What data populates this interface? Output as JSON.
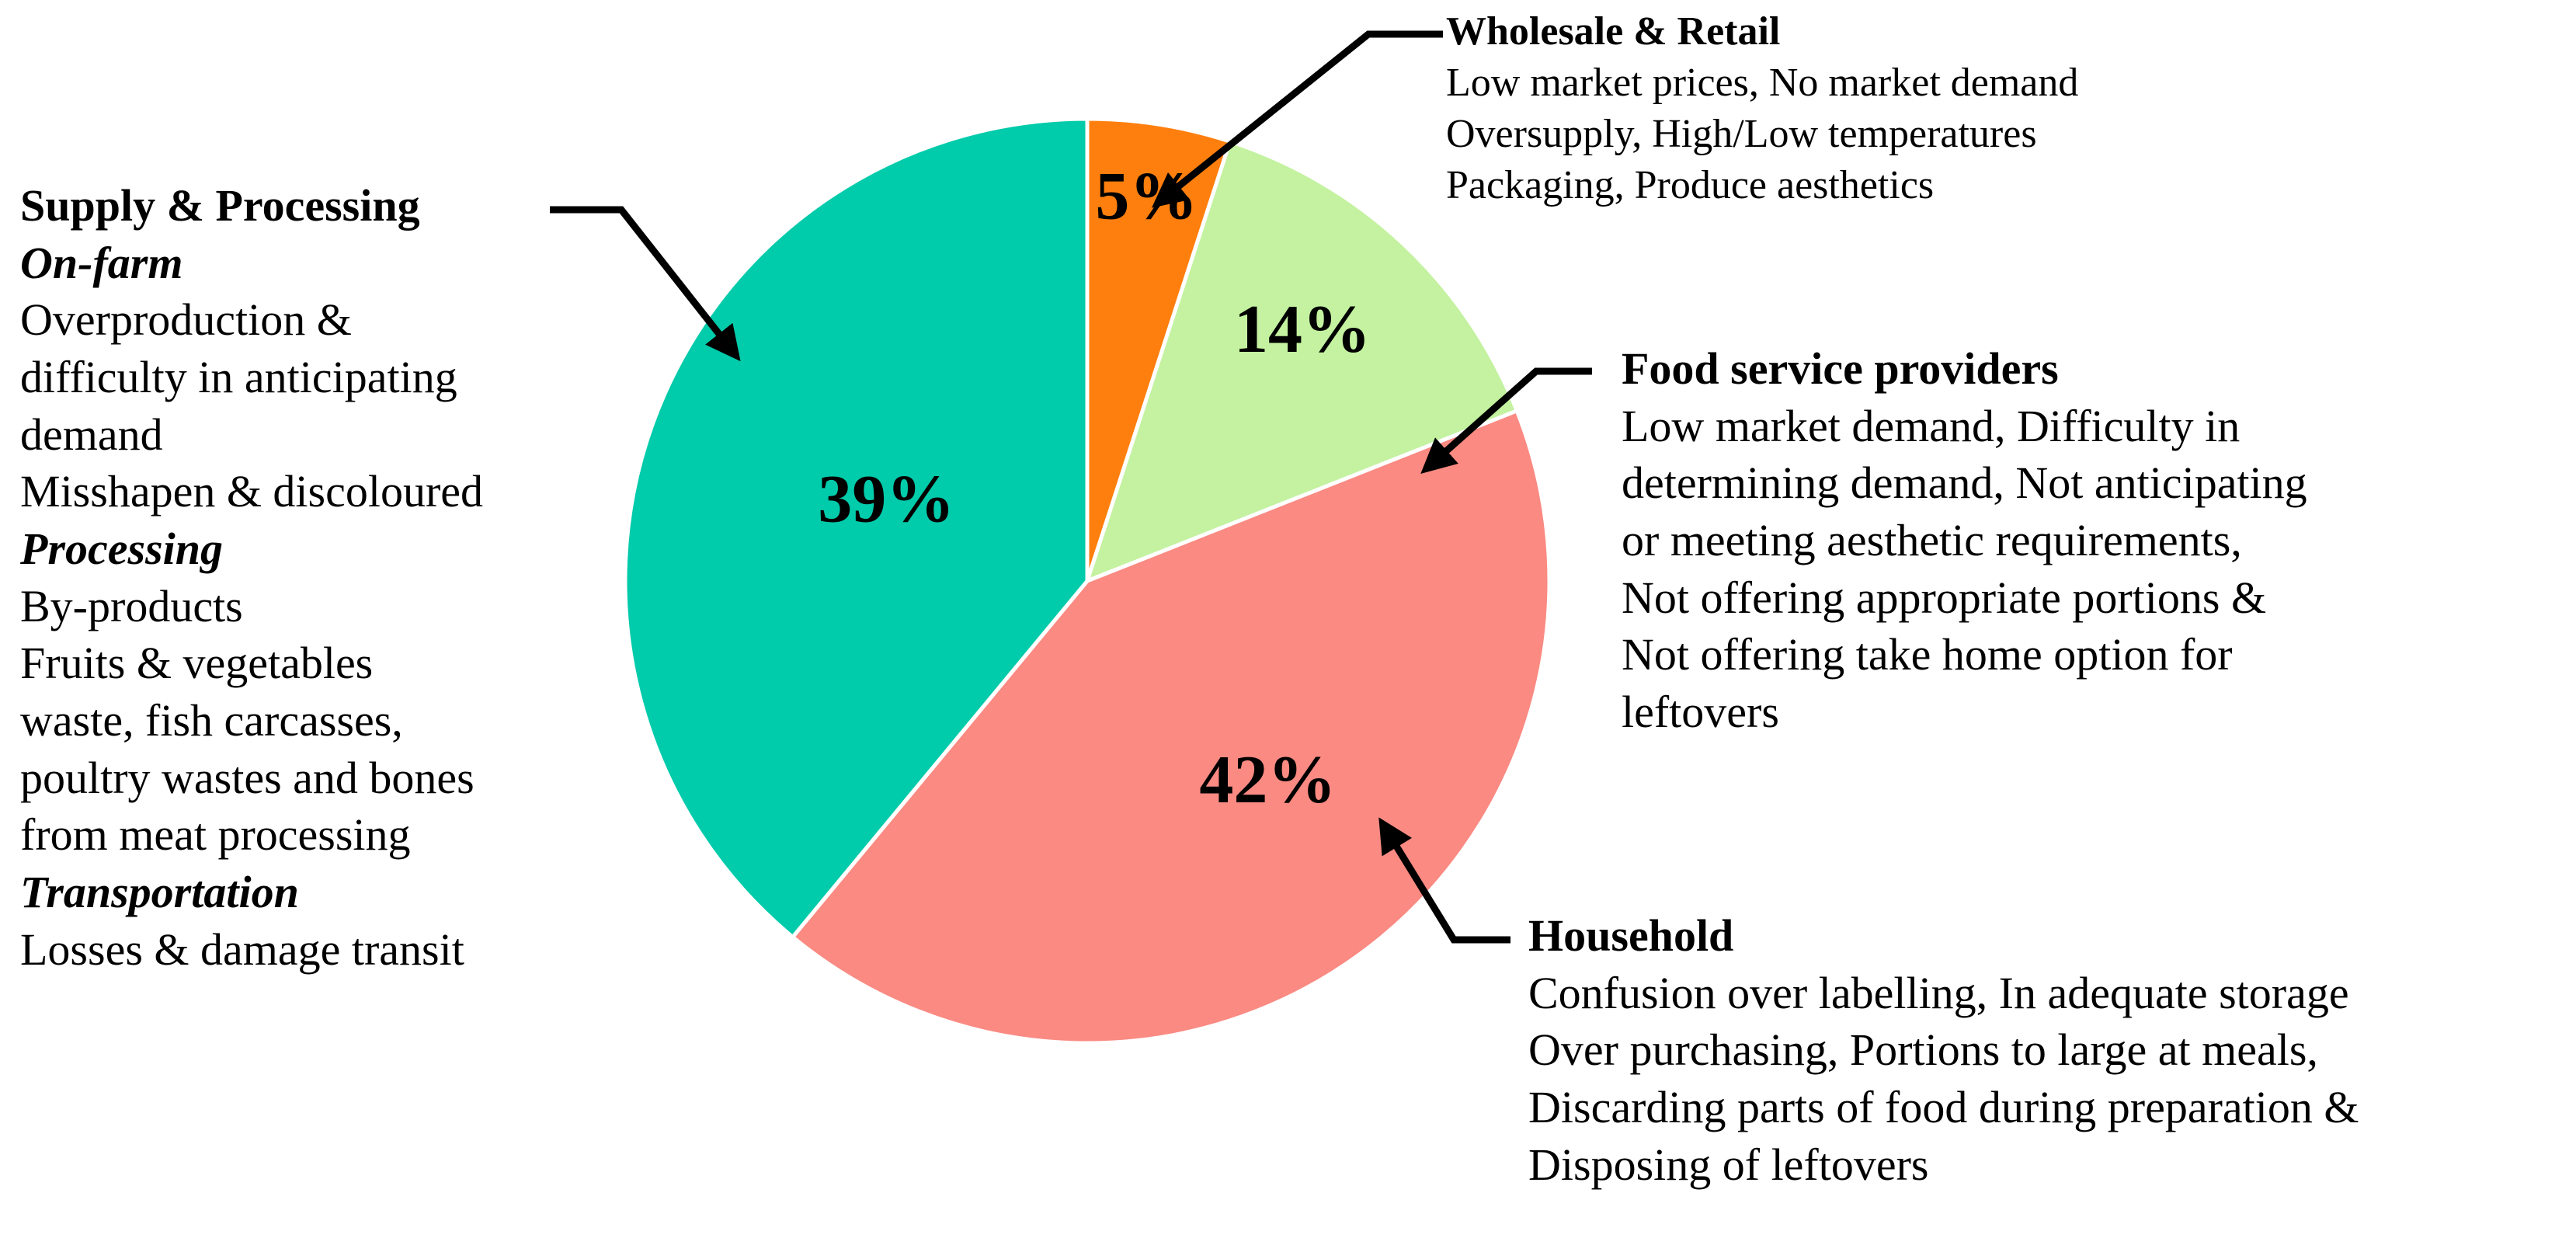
{
  "chart_data": {
    "type": "pie",
    "title": "",
    "slices": [
      {
        "label": "Wholesale & Retail",
        "value": 5,
        "value_label": "5%",
        "color": "#FF7F0E"
      },
      {
        "label": "Food service providers",
        "value": 14,
        "value_label": "14%",
        "color": "#C4F2A0"
      },
      {
        "label": "Household",
        "value": 42,
        "value_label": "42%",
        "color": "#FA8A82"
      },
      {
        "label": "Supply & Processing",
        "value": 39,
        "value_label": "39%",
        "color": "#00CBAA"
      }
    ],
    "start_angle_deg": 0,
    "direction": "clockwise",
    "legend": "none",
    "annotations": {
      "supply": {
        "heading": "Supply & Processing",
        "groups": [
          {
            "subheading": "On-farm",
            "lines": [
              "Overproduction &",
              "difficulty in anticipating",
              "demand",
              "Misshapen & discoloured"
            ]
          },
          {
            "subheading": "Processing",
            "lines": [
              "By-products",
              "Fruits & vegetables",
              "waste, fish carcasses,",
              "poultry wastes and bones",
              "from meat processing"
            ]
          },
          {
            "subheading": "Transportation",
            "lines": [
              "Losses & damage transit"
            ]
          }
        ]
      },
      "wholesale": {
        "heading": "Wholesale & Retail",
        "lines": [
          "Low market prices, No market demand",
          "Oversupply, High/Low temperatures",
          "Packaging, Produce aesthetics"
        ]
      },
      "foodservice": {
        "heading": "Food service providers",
        "lines": [
          "Low market demand, Difficulty in",
          "determining demand, Not anticipating",
          "or meeting aesthetic requirements,",
          "Not offering appropriate portions &",
          "Not offering take home option for",
          "leftovers"
        ]
      },
      "household": {
        "heading": "Household",
        "lines": [
          "Confusion over labelling, In adequate storage",
          "Over purchasing, Portions to large at meals,",
          "Discarding parts of food during preparation &",
          "Disposing of leftovers"
        ]
      }
    }
  }
}
